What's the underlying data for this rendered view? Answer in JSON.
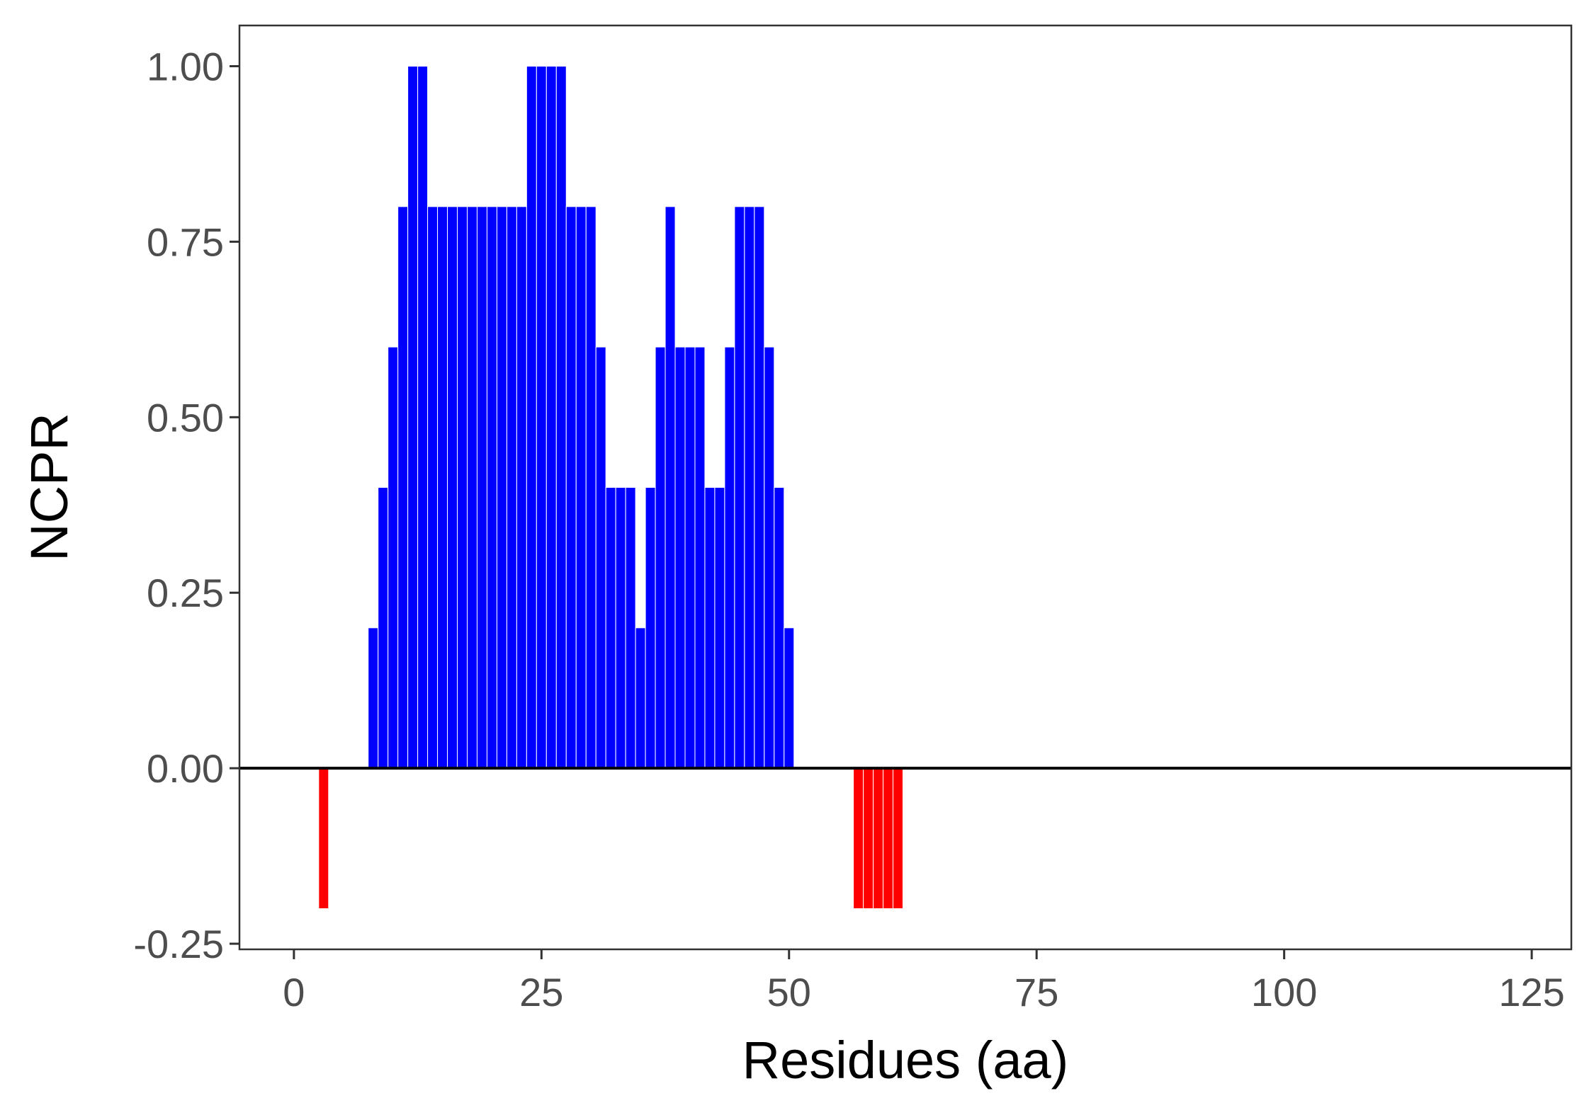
{
  "chart_data": {
    "type": "bar",
    "xlabel": "Residues (aa)",
    "ylabel": "NCPR",
    "xlim": [
      -5.5,
      129
    ],
    "ylim": [
      -0.258,
      1.058
    ],
    "x_ticks": [
      0,
      25,
      50,
      75,
      100,
      125
    ],
    "y_ticks": [
      -0.25,
      0,
      0.25,
      0.5,
      0.75,
      1
    ],
    "y_tick_labels": [
      "-0.25",
      "0.00",
      "0.25",
      "0.50",
      "0.75",
      "1.00"
    ],
    "x_tick_labels": [
      "0",
      "25",
      "50",
      "75",
      "100",
      "125"
    ],
    "grid": false,
    "legend": "none",
    "colors": {
      "positive": "#0000ff",
      "negative": "#ff0000",
      "zero_line": "#000000"
    },
    "x": [
      3,
      8,
      9,
      10,
      11,
      12,
      13,
      14,
      15,
      16,
      17,
      18,
      19,
      20,
      21,
      22,
      23,
      24,
      25,
      26,
      27,
      28,
      29,
      30,
      31,
      32,
      33,
      34,
      35,
      36,
      37,
      38,
      39,
      40,
      41,
      42,
      43,
      44,
      45,
      46,
      47,
      48,
      49,
      50,
      57,
      58,
      59,
      60,
      61
    ],
    "values": [
      -0.2,
      0.2,
      0.4,
      0.6,
      0.8,
      1.0,
      1.0,
      0.8,
      0.8,
      0.8,
      0.8,
      0.8,
      0.8,
      0.8,
      0.8,
      0.8,
      0.8,
      1.0,
      1.0,
      1.0,
      1.0,
      0.8,
      0.8,
      0.8,
      0.6,
      0.4,
      0.4,
      0.4,
      0.2,
      0.4,
      0.6,
      0.8,
      0.6,
      0.6,
      0.6,
      0.4,
      0.4,
      0.6,
      0.8,
      0.8,
      0.8,
      0.6,
      0.4,
      0.2,
      -0.2,
      -0.2,
      -0.2,
      -0.2,
      -0.2
    ]
  }
}
